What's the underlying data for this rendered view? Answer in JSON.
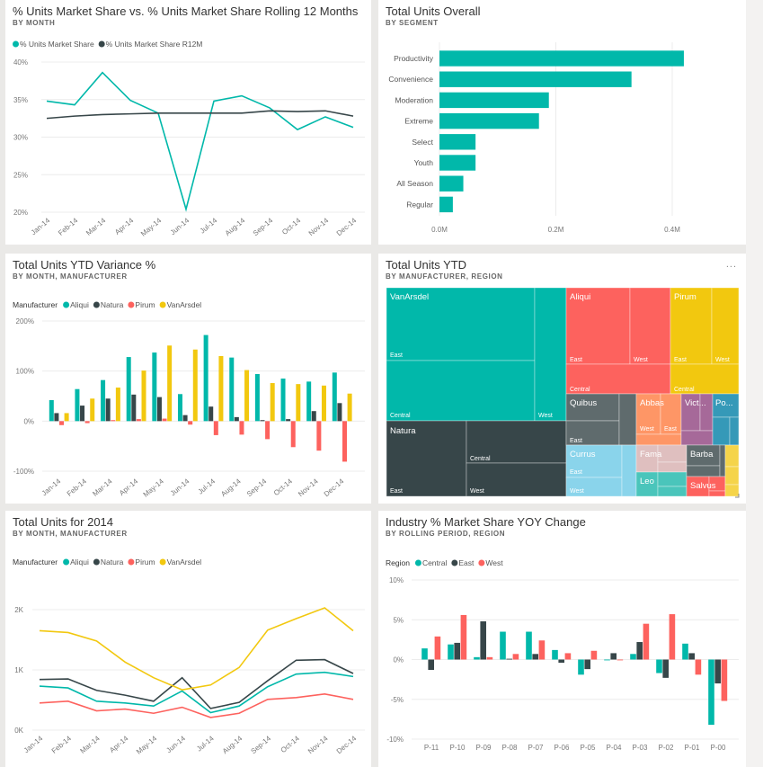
{
  "colors": {
    "teal": "#01b8aa",
    "dark": "#374649",
    "red": "#fd625e",
    "yellow": "#f2c80f"
  },
  "tiles": {
    "t1": {
      "title": "% Units Market Share vs. % Units Market Share Rolling 12 Months",
      "subtitle": "BY MONTH"
    },
    "t2": {
      "title": "Total Units Overall",
      "subtitle": "BY SEGMENT"
    },
    "t3": {
      "title": "Total Units YTD Variance %",
      "subtitle": "BY MONTH, MANUFACTURER"
    },
    "t4": {
      "title": "Total Units YTD",
      "subtitle": "BY MANUFACTURER, REGION",
      "more": "..."
    },
    "t5": {
      "title": "Total Units for 2014",
      "subtitle": "BY MONTH, MANUFACTURER"
    },
    "t6": {
      "title": "Industry % Market Share YOY Change",
      "subtitle": "BY ROLLING PERIOD, REGION"
    }
  },
  "chart_data": [
    {
      "type": "line",
      "title": "% Units Market Share vs. % Units Market Share Rolling 12 Months",
      "categories": [
        "Jan-14",
        "Feb-14",
        "Mar-14",
        "Apr-14",
        "May-14",
        "Jun-14",
        "Jul-14",
        "Aug-14",
        "Sep-14",
        "Oct-14",
        "Nov-14",
        "Dec-14"
      ],
      "series": [
        {
          "name": "% Units Market Share",
          "color": "#01b8aa",
          "values": [
            34.8,
            34.3,
            38.6,
            34.9,
            33.2,
            20.4,
            34.8,
            35.5,
            33.9,
            31.0,
            32.7,
            31.3
          ]
        },
        {
          "name": "% Units Market Share R12M",
          "color": "#374649",
          "values": [
            32.5,
            32.8,
            33.0,
            33.1,
            33.2,
            33.2,
            33.2,
            33.2,
            33.5,
            33.4,
            33.5,
            32.8
          ]
        }
      ],
      "ylim": [
        20,
        40
      ],
      "yticks": [
        "40%",
        "35%",
        "30%",
        "25%",
        "20%"
      ],
      "legend": "top-left",
      "grid": true
    },
    {
      "type": "bar",
      "orientation": "horizontal",
      "title": "Total Units Overall",
      "categories": [
        "Productivity",
        "Convenience",
        "Moderation",
        "Extreme",
        "Select",
        "Youth",
        "All Season",
        "Regular"
      ],
      "values": [
        0.42,
        0.33,
        0.188,
        0.171,
        0.062,
        0.062,
        0.041,
        0.023
      ],
      "unit": "M",
      "xlim": [
        0,
        0.4
      ],
      "xticks": [
        "0.0M",
        "0.2M",
        "0.4M"
      ],
      "grid": true
    },
    {
      "type": "bar",
      "title": "Total Units YTD Variance %",
      "legend_title": "Manufacturer",
      "categories": [
        "Jan-14",
        "Feb-14",
        "Mar-14",
        "Apr-14",
        "May-14",
        "Jun-14",
        "Jul-14",
        "Aug-14",
        "Sep-14",
        "Oct-14",
        "Nov-14",
        "Dec-14"
      ],
      "series": [
        {
          "name": "Aliqui",
          "color": "#01b8aa",
          "values": [
            42,
            64,
            82,
            128,
            137,
            54,
            172,
            127,
            94,
            85,
            79,
            97
          ]
        },
        {
          "name": "Natura",
          "color": "#374649",
          "values": [
            16,
            31,
            45,
            53,
            48,
            12,
            29,
            8,
            2,
            4,
            20,
            36
          ]
        },
        {
          "name": "Pirum",
          "color": "#fd625e",
          "values": [
            -8,
            -4,
            2,
            4,
            5,
            -7,
            -28,
            -27,
            -36,
            -52,
            -59,
            -81
          ]
        },
        {
          "name": "VanArsdel",
          "color": "#f2c80f",
          "values": [
            16,
            45,
            67,
            101,
            151,
            143,
            130,
            102,
            76,
            74,
            71,
            55
          ]
        }
      ],
      "ylim": [
        -100,
        200
      ],
      "yticks": [
        "200%",
        "100%",
        "0%",
        "-100%"
      ],
      "legend": "top-left",
      "grid": true
    },
    {
      "type": "treemap",
      "title": "Total Units YTD",
      "nodes": [
        {
          "name": "VanArsdel",
          "children": [
            "East",
            "Central",
            "West"
          ]
        },
        {
          "name": "Natura",
          "children": [
            "East",
            "Central",
            "West"
          ]
        },
        {
          "name": "Aliqui",
          "children": [
            "East",
            "West",
            "Central"
          ]
        },
        {
          "name": "Pirum",
          "children": [
            "East",
            "West",
            "Central"
          ]
        },
        {
          "name": "Quibus",
          "children": [
            "East"
          ]
        },
        {
          "name": "Abbas",
          "children": [
            "West",
            "East"
          ]
        },
        {
          "name": "Vict...",
          "children": []
        },
        {
          "name": "Po...",
          "children": []
        },
        {
          "name": "Currus",
          "children": [
            "East",
            "West"
          ]
        },
        {
          "name": "Fama",
          "children": []
        },
        {
          "name": "Leo",
          "children": []
        },
        {
          "name": "Barba",
          "children": []
        },
        {
          "name": "Salvus",
          "children": []
        }
      ]
    },
    {
      "type": "line",
      "title": "Total Units for 2014",
      "legend_title": "Manufacturer",
      "categories": [
        "Jan-14",
        "Feb-14",
        "Mar-14",
        "Apr-14",
        "May-14",
        "Jun-14",
        "Jul-14",
        "Aug-14",
        "Sep-14",
        "Oct-14",
        "Nov-14",
        "Dec-14"
      ],
      "series": [
        {
          "name": "Aliqui",
          "color": "#01b8aa",
          "values": [
            730,
            700,
            480,
            450,
            400,
            650,
            290,
            400,
            720,
            930,
            960,
            890
          ]
        },
        {
          "name": "Natura",
          "color": "#374649",
          "values": [
            840,
            850,
            660,
            580,
            480,
            870,
            360,
            460,
            820,
            1160,
            1170,
            940
          ]
        },
        {
          "name": "Pirum",
          "color": "#fd625e",
          "values": [
            450,
            480,
            320,
            350,
            280,
            380,
            210,
            280,
            510,
            540,
            600,
            510
          ]
        },
        {
          "name": "VanArsdel",
          "color": "#f2c80f",
          "values": [
            1650,
            1620,
            1480,
            1130,
            870,
            670,
            750,
            1040,
            1660,
            1850,
            2030,
            1650
          ]
        }
      ],
      "ylim": [
        0,
        2000
      ],
      "yticks": [
        "2K",
        "1K",
        "0K"
      ],
      "legend": "top-left",
      "grid": true
    },
    {
      "type": "bar",
      "title": "Industry % Market Share YOY Change",
      "legend_title": "Region",
      "categories": [
        "P-11",
        "P-10",
        "P-09",
        "P-08",
        "P-07",
        "P-06",
        "P-05",
        "P-04",
        "P-03",
        "P-02",
        "P-01",
        "P-00"
      ],
      "series": [
        {
          "name": "Central",
          "color": "#01b8aa",
          "values": [
            1.4,
            1.9,
            0.3,
            3.5,
            3.5,
            1.2,
            -1.9,
            -0.1,
            0.7,
            -1.7,
            2.0,
            -8.2
          ]
        },
        {
          "name": "East",
          "color": "#374649",
          "values": [
            -1.3,
            2.1,
            4.8,
            0.1,
            0.7,
            -0.4,
            -1.2,
            0.8,
            2.2,
            -2.3,
            0.8,
            -3.0
          ]
        },
        {
          "name": "West",
          "color": "#fd625e",
          "values": [
            2.9,
            5.6,
            0.3,
            0.7,
            2.4,
            0.8,
            1.1,
            -0.1,
            4.5,
            5.7,
            -1.9,
            -5.2
          ]
        }
      ],
      "ylim": [
        -10,
        10
      ],
      "yticks": [
        "10%",
        "5%",
        "0%",
        "-5%",
        "-10%"
      ],
      "legend": "top-left",
      "grid": true
    }
  ]
}
